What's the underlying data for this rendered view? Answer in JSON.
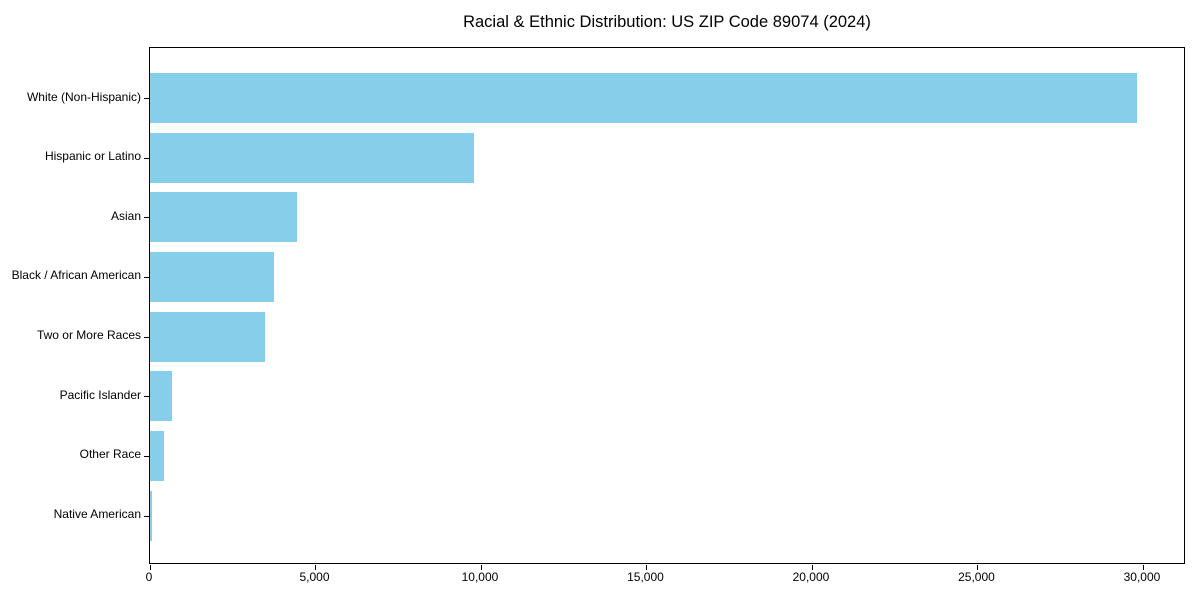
{
  "chart_data": {
    "type": "bar",
    "orientation": "horizontal",
    "title": "Racial & Ethnic Distribution: US ZIP Code 89074 (2024)",
    "xlabel": "",
    "ylabel": "",
    "categories": [
      "White (Non-Hispanic)",
      "Hispanic or Latino",
      "Asian",
      "Black / African American",
      "Two or More Races",
      "Pacific Islander",
      "Other Race",
      "Native American"
    ],
    "values": [
      29820,
      9790,
      4450,
      3740,
      3480,
      670,
      430,
      50
    ],
    "xlim": [
      0,
      31300
    ],
    "x_ticks": [
      0,
      5000,
      10000,
      15000,
      20000,
      25000,
      30000
    ],
    "x_tick_labels": [
      "0",
      "5,000",
      "10,000",
      "15,000",
      "20,000",
      "25,000",
      "30,000"
    ],
    "bar_color": "#87CEEB",
    "background_color": "#FFFFFF",
    "axis_color": "#000000",
    "grid": false,
    "legend": null
  }
}
